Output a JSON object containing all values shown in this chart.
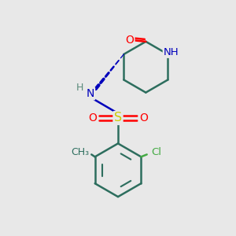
{
  "bg_color": "#e8e8e8",
  "bond_color": "#2d6e5e",
  "bond_width": 1.8,
  "atom_colors": {
    "O": "#ff0000",
    "N": "#0000bb",
    "S": "#cccc00",
    "Cl": "#44aa44",
    "C": "#2d6e5e",
    "H": "#5a8a7a"
  },
  "font_size": 9.5,
  "fig_size": [
    3.0,
    3.0
  ],
  "dpi": 100
}
